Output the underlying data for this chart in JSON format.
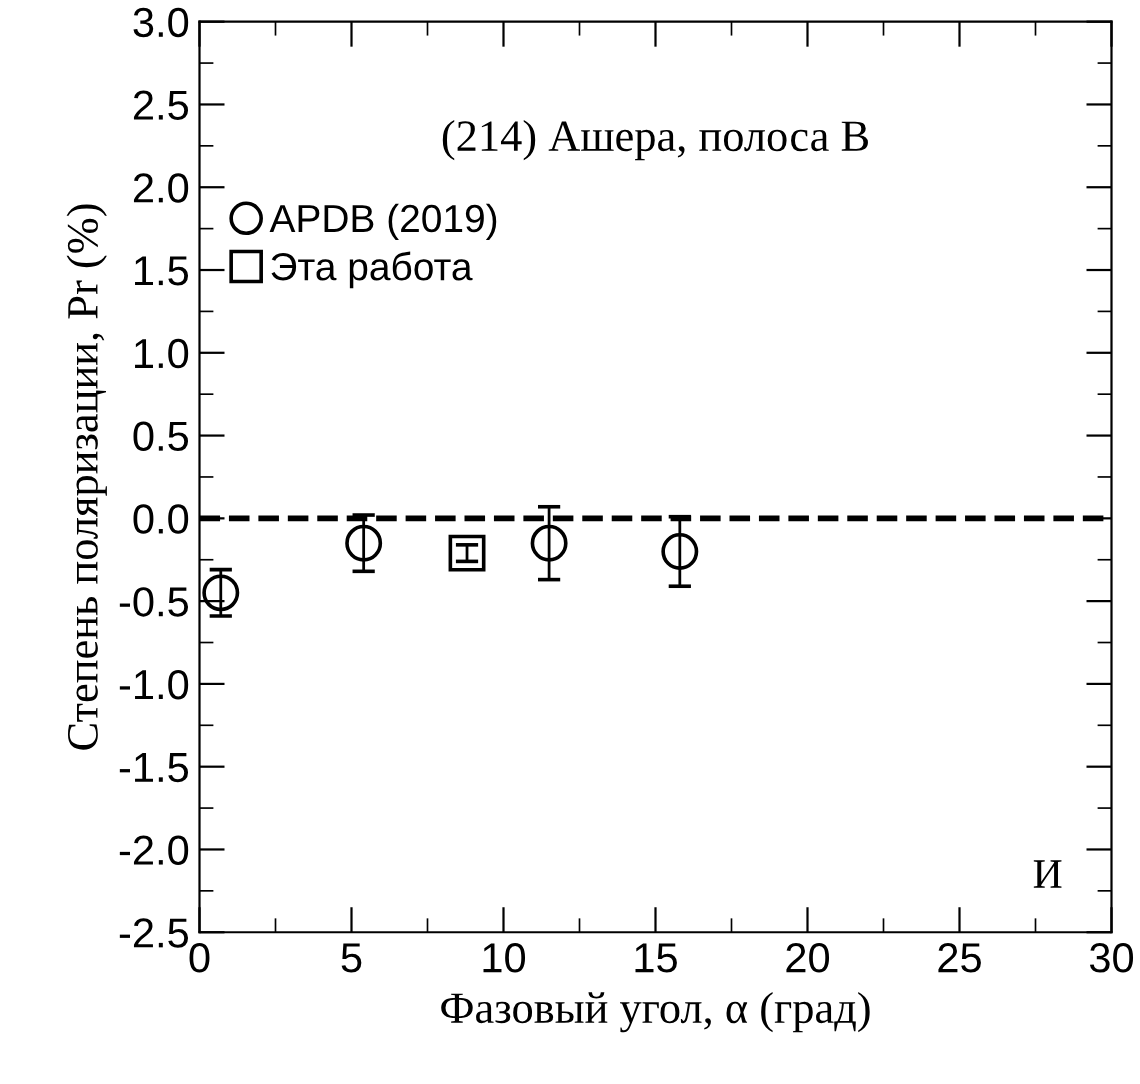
{
  "chart_data": {
    "type": "scatter",
    "xlabel": "Фазовый угол, α (град)",
    "ylabel": "Степень поляризации, Pr (%)",
    "annotations": [
      "(214) Ашера, полоса B",
      "И"
    ],
    "series": [
      {
        "name": "APDB (2019)",
        "color": "#000000",
        "marker": "circle",
        "x": [
          0.7,
          5.4,
          11.5,
          15.8
        ],
        "values": [
          -0.45,
          -0.15,
          -0.15,
          -0.2
        ],
        "errors": [
          0.14,
          0.17,
          0.22,
          0.21
        ]
      },
      {
        "name": "Эта работа",
        "color": "#000000",
        "marker": "square",
        "x": [
          8.8
        ],
        "values": [
          -0.21
        ],
        "errors": [
          0.05
        ]
      }
    ],
    "ref_lines": [
      {
        "axis": "y",
        "value": 0,
        "line_style": "dashed",
        "color": "#000000"
      }
    ],
    "xlim": [
      0,
      30
    ],
    "xticks": [
      0,
      5,
      10,
      15,
      20,
      25,
      30
    ],
    "ylim": [
      -2.5,
      3.0
    ],
    "yticks": [
      {
        "value": -2.5,
        "label": "-2.5"
      },
      {
        "value": -2.0,
        "label": "-2.0"
      },
      {
        "value": -1.5,
        "label": "-1.5"
      },
      {
        "value": -1.0,
        "label": "-1.0"
      },
      {
        "value": -0.5,
        "label": "-0.5"
      },
      {
        "value": 0.0,
        "label": "0.0"
      },
      {
        "value": 0.5,
        "label": "0.5"
      },
      {
        "value": 1.0,
        "label": "1.0"
      },
      {
        "value": 1.5,
        "label": "1.5"
      },
      {
        "value": 2.0,
        "label": "2.0"
      },
      {
        "value": 2.5,
        "label": "2.5"
      },
      {
        "value": 3.0,
        "label": "3.0"
      }
    ],
    "legend": "top left",
    "grid": false
  }
}
